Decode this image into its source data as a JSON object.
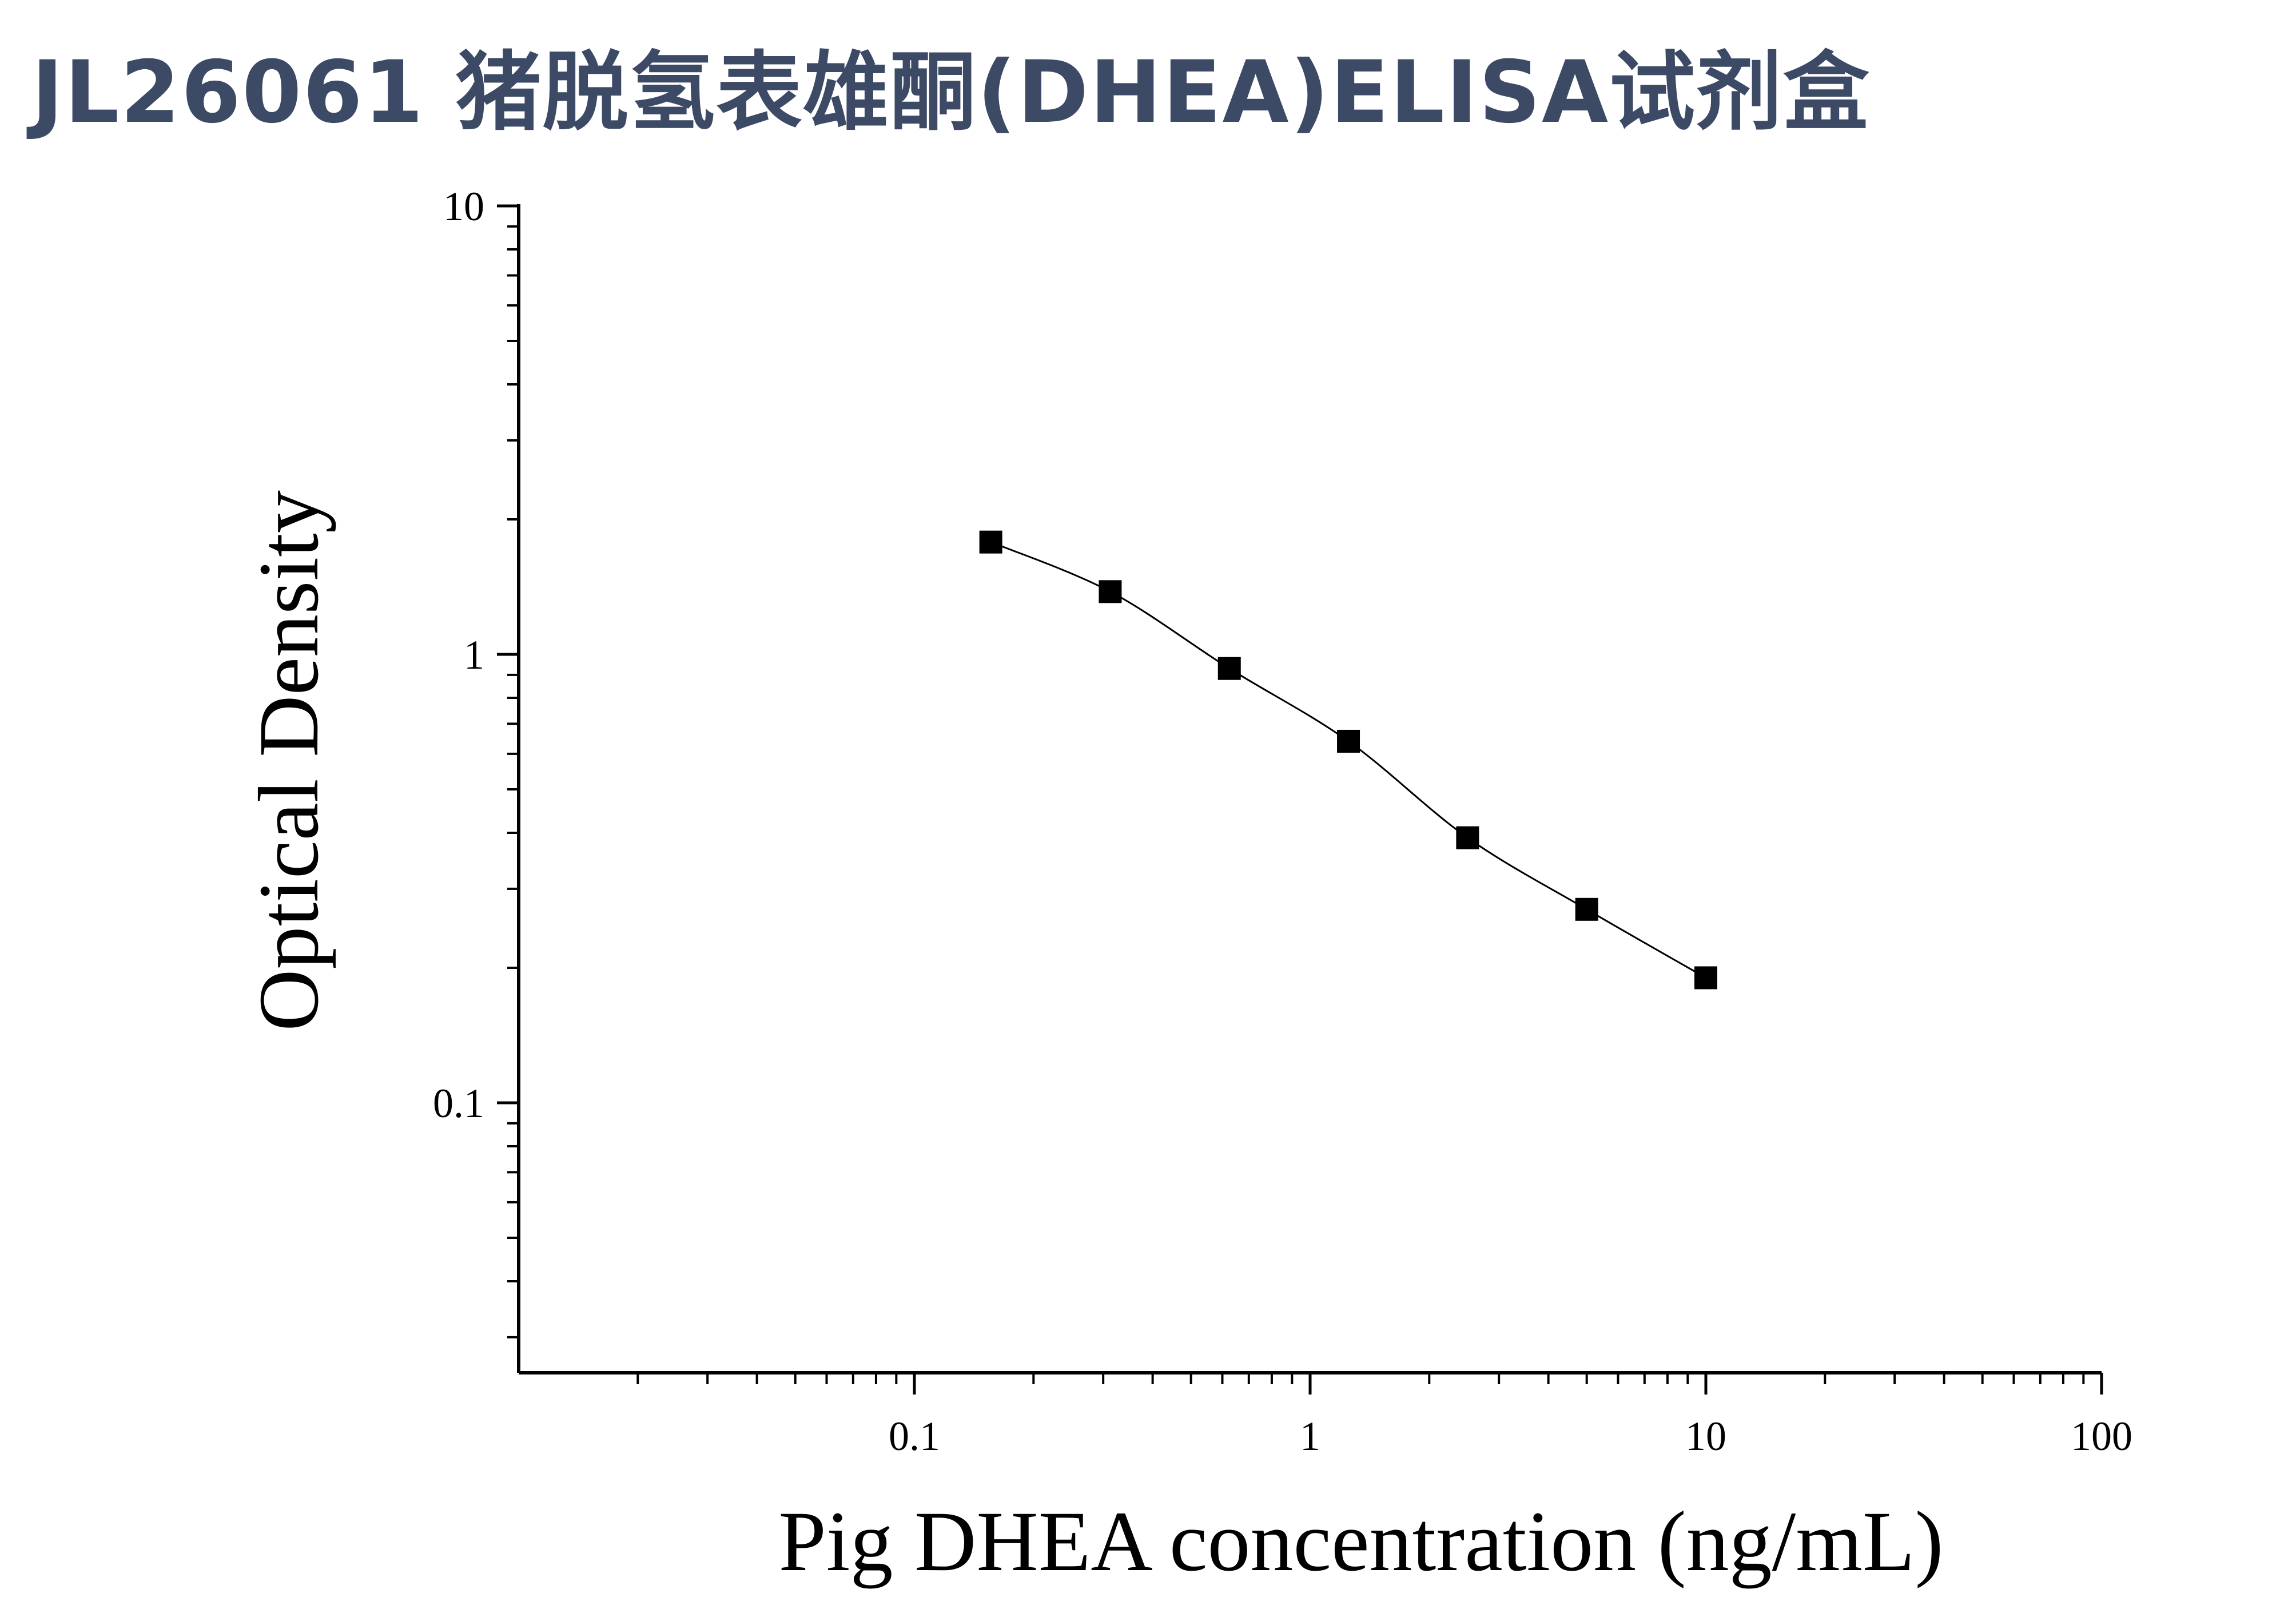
{
  "title": "JL26061 猪脱氢表雄酮(DHEA)ELISA试剂盒",
  "chart_data": {
    "type": "scatter",
    "title": "JL26061 猪脱氢表雄酮(DHEA)ELISA试剂盒",
    "xlabel": "Pig DHEA concentration (ng/mL)",
    "ylabel": "Optical Density",
    "xscale": "log",
    "yscale": "log",
    "xlim": [
      0.01,
      100
    ],
    "ylim": [
      0.025,
      10
    ],
    "x_ticks": [
      {
        "value": 0.1,
        "label": "0.1"
      },
      {
        "value": 1,
        "label": "1"
      },
      {
        "value": 10,
        "label": "10"
      },
      {
        "value": 100,
        "label": "100"
      }
    ],
    "y_ticks": [
      {
        "value": 0.1,
        "label": "0.1"
      },
      {
        "value": 1,
        "label": "1"
      },
      {
        "value": 10,
        "label": "10"
      }
    ],
    "grid": false,
    "marker": "square",
    "color": "#000000",
    "fit_curve": true,
    "series": [
      {
        "x": [
          0.156,
          0.3125,
          0.625,
          1.25,
          2.5,
          5,
          10
        ],
        "y": [
          1.78,
          1.38,
          0.93,
          0.64,
          0.39,
          0.27,
          0.19
        ]
      }
    ]
  }
}
